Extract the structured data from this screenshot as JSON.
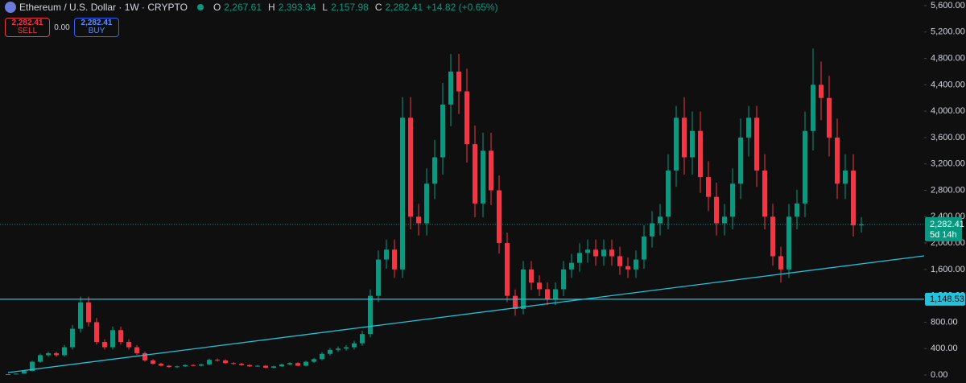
{
  "header": {
    "symbol": "Ethereum / U.S. Dollar · 1W · CRYPTO",
    "ohlc": [
      {
        "key": "O",
        "value": "2,267.61"
      },
      {
        "key": "H",
        "value": "2,393.34"
      },
      {
        "key": "L",
        "value": "2,157.98"
      },
      {
        "key": "C",
        "value": "2,282.41"
      }
    ],
    "change": "+14.82 (+0.65%)"
  },
  "trade": {
    "sell_price": "2,282.41",
    "sell": "SELL",
    "spread": "0.00",
    "buy_price": "2,282.41",
    "buy": "BUY"
  },
  "chart_data": {
    "type": "candlestick",
    "up_color": "#089981",
    "down_color": "#f23645",
    "line_color": "#22c1dc",
    "ylim": [
      0,
      5600
    ],
    "yticks": [
      {
        "value": 0,
        "label": "0.00"
      },
      {
        "value": 400,
        "label": "400.00"
      },
      {
        "value": 800,
        "label": "800.00"
      },
      {
        "value": 1200,
        "label": "1,200.00"
      },
      {
        "value": 1600,
        "label": "1,600.00"
      },
      {
        "value": 2000,
        "label": "2,000.00"
      },
      {
        "value": 2400,
        "label": "2,400.00"
      },
      {
        "value": 2800,
        "label": "2,800.00"
      },
      {
        "value": 3200,
        "label": "3,200.00"
      },
      {
        "value": 3600,
        "label": "3,600.00"
      },
      {
        "value": 4000,
        "label": "4,000.00"
      },
      {
        "value": 4400,
        "label": "4,400.00"
      },
      {
        "value": 4800,
        "label": "4,800.00"
      },
      {
        "value": 5200,
        "label": "5,200.00"
      },
      {
        "value": 5600,
        "label": "5,600.00"
      }
    ],
    "open": [
      10,
      12,
      20,
      60,
      200,
      300,
      330,
      300,
      420,
      700,
      1100,
      800,
      500,
      420,
      680,
      500,
      420,
      330,
      220,
      170,
      140,
      120,
      130,
      150,
      140,
      160,
      230,
      220,
      180,
      170,
      150,
      130,
      140,
      110,
      130,
      160,
      180,
      140,
      200,
      240,
      320,
      380,
      400,
      420,
      480,
      620,
      1200,
      1750,
      1900,
      1600,
      3900,
      2400,
      2300,
      2900,
      3300,
      4100,
      4600,
      4300,
      3500,
      2600,
      3400,
      2800,
      2000,
      1200,
      1000,
      1600,
      1400,
      1300,
      1150,
      1300,
      1600,
      1700,
      1850,
      1900,
      1800,
      1900,
      1800,
      1650,
      1600,
      1750,
      2100,
      2300,
      2400,
      3100,
      3900,
      3300,
      3700,
      3000,
      2700,
      2300,
      2400,
      2900,
      3600,
      3900,
      3100,
      2400,
      1800,
      1600,
      2400,
      2600,
      3700,
      4400,
      4200,
      3600,
      2900,
      3100,
      2267.61
    ],
    "high": [
      14,
      22,
      66,
      216,
      324,
      356,
      356,
      454,
      756,
      1188,
      1188,
      864,
      540,
      734,
      734,
      540,
      454,
      356,
      238,
      184,
      151,
      140,
      162,
      162,
      173,
      248,
      248,
      238,
      194,
      184,
      162,
      151,
      151,
      140,
      173,
      194,
      194,
      216,
      259,
      346,
      410,
      432,
      454,
      518,
      670,
      1296,
      1890,
      2052,
      2052,
      4212,
      4212,
      2592,
      3132,
      3564,
      4428,
      4868,
      4868,
      4644,
      3780,
      3672,
      3672,
      3024,
      2160,
      1296,
      1728,
      1728,
      1512,
      1404,
      1404,
      1728,
      1836,
      1998,
      2052,
      2052,
      2052,
      2052,
      1944,
      1782,
      1890,
      2268,
      2484,
      2592,
      3348,
      4080,
      4212,
      3996,
      3996,
      3240,
      2916,
      2592,
      3132,
      3888,
      4080,
      4080,
      3348,
      2592,
      1944,
      2592,
      2808,
      3996,
      4950,
      4752,
      4536,
      3888,
      3348,
      3348,
      2393.34
    ],
    "low": [
      9,
      11,
      18,
      55,
      184,
      276,
      276,
      276,
      386,
      644,
      736,
      460,
      386,
      386,
      460,
      386,
      304,
      202,
      156,
      129,
      110,
      110,
      120,
      129,
      129,
      147,
      202,
      166,
      156,
      138,
      120,
      120,
      101,
      101,
      120,
      147,
      129,
      129,
      184,
      221,
      294,
      350,
      368,
      386,
      442,
      570,
      1104,
      1610,
      1472,
      1472,
      2208,
      2116,
      2116,
      2668,
      3036,
      3772,
      3956,
      3220,
      2392,
      2392,
      2576,
      1840,
      1104,
      900,
      920,
      1288,
      1196,
      1058,
      1058,
      1196,
      1472,
      1564,
      1702,
      1656,
      1656,
      1656,
      1518,
      1472,
      1472,
      1610,
      1932,
      2116,
      2208,
      2852,
      3036,
      3036,
      2760,
      2484,
      2116,
      2116,
      2208,
      2668,
      3312,
      2852,
      2208,
      1656,
      1400,
      1472,
      2208,
      2392,
      3404,
      3864,
      3312,
      2668,
      2668,
      2100,
      2157.98
    ],
    "close": [
      12,
      20,
      60,
      200,
      300,
      330,
      300,
      420,
      700,
      1100,
      800,
      500,
      420,
      680,
      500,
      420,
      330,
      220,
      170,
      140,
      120,
      130,
      150,
      140,
      160,
      230,
      220,
      180,
      170,
      150,
      130,
      140,
      110,
      130,
      160,
      180,
      140,
      200,
      240,
      320,
      380,
      400,
      420,
      480,
      620,
      1200,
      1750,
      1900,
      1600,
      3900,
      2400,
      2300,
      2900,
      3300,
      4100,
      4600,
      4300,
      3500,
      2600,
      3400,
      2800,
      2000,
      1200,
      1000,
      1600,
      1400,
      1300,
      1150,
      1300,
      1600,
      1700,
      1850,
      1900,
      1800,
      1900,
      1800,
      1650,
      1600,
      1750,
      2100,
      2300,
      2400,
      3100,
      3900,
      3300,
      3700,
      3000,
      2700,
      2300,
      2400,
      2900,
      3600,
      3900,
      3100,
      2400,
      1800,
      1600,
      2400,
      2600,
      3700,
      4400,
      4200,
      3600,
      2900,
      3100,
      2267.61,
      2282.41
    ],
    "last_price_label": "2,282.41",
    "countdown": "5d 14h",
    "horizontal_line": {
      "value": 1148.53,
      "label": "1,148.53"
    },
    "trendline": {
      "start": 37,
      "end": 1806
    }
  }
}
